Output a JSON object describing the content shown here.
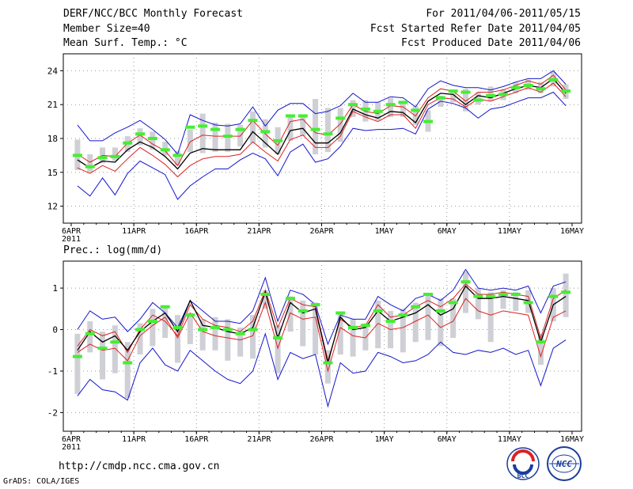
{
  "header": {
    "title": "DERF/NCC/BCC Monthly Forecast",
    "member_size": "Member Size=40",
    "variable_top": "Mean Surf. Temp.: °C",
    "period": "For 2011/04/06-2011/05/15",
    "refer_date": "Fcst Started Refer Date 2011/04/05",
    "produced_date": "Fcst Produced Date 2011/04/06"
  },
  "footer": {
    "url": "http://cmdp.ncc.cma.gov.cn",
    "credit": "GrADS: COLA/IGES",
    "logo_left": "BCC",
    "logo_right": "NCC"
  },
  "chart_data": [
    {
      "type": "line",
      "title": "Mean Surf. Temp.: °C",
      "ylim": [
        10.5,
        25.5
      ],
      "yticks": [
        12,
        15,
        18,
        21,
        24
      ],
      "x_tick_labels": [
        "6APR",
        "11APR",
        "16APR",
        "21APR",
        "26APR",
        "1MAY",
        "6MAY",
        "11MAY",
        "16MAY"
      ],
      "x_tick_days": [
        0,
        5,
        10,
        15,
        20,
        25,
        30,
        35,
        40
      ],
      "year_label": "2011",
      "colors": {
        "max_min": "#1515cc",
        "spread": "#dd2222",
        "mean": "#000000",
        "obs": "#44ee33",
        "box": "#cfcfd6",
        "grid": "#999999"
      },
      "series": [
        {
          "name": "ensemble max",
          "color": "#1515cc",
          "values": [
            19.2,
            17.8,
            17.8,
            18.5,
            19.0,
            19.6,
            18.8,
            17.9,
            16.6,
            20.1,
            19.6,
            19.2,
            19.1,
            19.3,
            20.8,
            19.1,
            20.5,
            21.1,
            21.1,
            20.2,
            20.4,
            20.9,
            22.0,
            21.2,
            21.2,
            21.7,
            21.6,
            20.8,
            22.4,
            23.1,
            22.7,
            22.5,
            22.5,
            22.3,
            22.6,
            23.0,
            23.3,
            23.3,
            24.0,
            22.8
          ]
        },
        {
          "name": "ensemble upper",
          "color": "#dd2222",
          "values": [
            16.6,
            15.9,
            16.5,
            16.4,
            17.6,
            18.3,
            17.5,
            16.9,
            15.6,
            17.7,
            18.3,
            18.2,
            18.2,
            18.2,
            19.6,
            18.4,
            17.4,
            19.5,
            19.7,
            18.5,
            18.3,
            19.3,
            21.0,
            20.4,
            20.2,
            20.9,
            20.8,
            20.0,
            21.6,
            22.4,
            22.2,
            21.3,
            22.1,
            22.1,
            22.3,
            22.7,
            23.1,
            22.8,
            23.6,
            22.3
          ]
        },
        {
          "name": "ensemble mean",
          "color": "#000000",
          "values": [
            16.1,
            15.4,
            16.0,
            15.9,
            17.0,
            17.7,
            17.2,
            16.4,
            15.3,
            16.7,
            17.1,
            17.0,
            17.0,
            17.0,
            18.6,
            17.6,
            16.6,
            18.7,
            18.9,
            17.6,
            17.6,
            18.5,
            20.6,
            20.1,
            19.8,
            20.4,
            20.3,
            19.4,
            21.3,
            22.0,
            21.9,
            21.0,
            21.8,
            21.6,
            22.0,
            22.4,
            22.7,
            22.5,
            23.3,
            22.0
          ]
        },
        {
          "name": "ensemble lower",
          "color": "#dd2222",
          "values": [
            15.4,
            14.9,
            15.6,
            15.1,
            16.2,
            17.2,
            16.5,
            15.7,
            14.6,
            15.6,
            16.2,
            16.4,
            16.4,
            16.6,
            17.7,
            16.8,
            16.0,
            17.9,
            18.3,
            17.2,
            17.2,
            18.2,
            20.4,
            19.9,
            19.5,
            20.1,
            20.1,
            18.9,
            21.0,
            21.6,
            21.5,
            20.8,
            21.5,
            21.3,
            21.7,
            22.1,
            22.5,
            22.1,
            22.9,
            21.7
          ]
        },
        {
          "name": "ensemble min",
          "color": "#1515cc",
          "values": [
            13.8,
            12.9,
            14.5,
            13.0,
            14.9,
            16.0,
            15.4,
            14.8,
            12.6,
            13.8,
            14.6,
            15.3,
            15.3,
            16.1,
            16.7,
            16.2,
            14.7,
            16.8,
            17.5,
            15.9,
            16.2,
            17.3,
            18.9,
            18.7,
            18.8,
            18.8,
            18.9,
            18.4,
            20.6,
            21.3,
            21.1,
            20.7,
            19.8,
            20.6,
            20.8,
            21.2,
            21.6,
            21.6,
            22.1,
            20.9
          ]
        },
        {
          "name": "observed",
          "color": "#44ee33",
          "marker": "dash",
          "values": [
            16.5,
            15.5,
            16.3,
            16.4,
            17.6,
            18.4,
            18.0,
            17.0,
            16.5,
            19.0,
            19.1,
            18.8,
            18.2,
            18.8,
            19.6,
            18.6,
            17.8,
            20.0,
            20.0,
            18.8,
            18.4,
            19.8,
            21.0,
            20.6,
            20.4,
            21.0,
            21.2,
            20.5,
            19.5,
            21.6,
            22.2,
            22.1,
            21.4,
            21.8,
            21.9,
            22.5,
            22.7,
            22.4,
            23.2,
            22.2
          ]
        },
        {
          "name": "box high",
          "color": "#cfcfd6",
          "values": [
            17.9,
            16.6,
            17.2,
            17.2,
            18.2,
            18.9,
            18.6,
            17.7,
            16.9,
            18.8,
            20.2,
            19.4,
            19.3,
            19.2,
            20.4,
            19.7,
            19.0,
            20.0,
            20.0,
            21.5,
            20.7,
            20.7,
            21.4,
            21.4,
            21.2,
            21.6,
            21.1,
            20.9,
            20.5,
            21.8,
            22.3,
            22.4,
            22.1,
            22.6,
            22.4,
            23.0,
            23.2,
            23.0,
            23.9,
            22.8
          ]
        },
        {
          "name": "box low",
          "color": "#cfcfd6",
          "values": [
            15.2,
            15.0,
            15.8,
            16.0,
            16.8,
            17.4,
            17.0,
            16.5,
            15.6,
            16.8,
            16.7,
            16.8,
            16.8,
            17.3,
            17.6,
            17.2,
            16.6,
            17.8,
            18.2,
            16.6,
            16.8,
            17.7,
            19.9,
            19.5,
            19.6,
            19.9,
            19.9,
            19.2,
            18.6,
            20.8,
            21.2,
            20.4,
            21.0,
            21.3,
            21.4,
            22.0,
            22.3,
            22.0,
            22.6,
            21.5
          ]
        }
      ]
    },
    {
      "type": "line",
      "title": "Prec.: log(mm/d)",
      "ylim": [
        -2.45,
        1.65
      ],
      "yticks": [
        -2,
        -1,
        0,
        1
      ],
      "x_tick_labels": [
        "6APR",
        "11APR",
        "16APR",
        "21APR",
        "26APR",
        "1MAY",
        "6MAY",
        "11MAY",
        "16MAY"
      ],
      "x_tick_days": [
        0,
        5,
        10,
        15,
        20,
        25,
        30,
        35,
        40
      ],
      "year_label": "2011",
      "series": [
        {
          "name": "ensemble max",
          "color": "#1515cc",
          "values": [
            0.0,
            0.45,
            0.25,
            0.3,
            -0.05,
            0.25,
            0.65,
            0.4,
            0.05,
            0.7,
            0.45,
            0.2,
            0.2,
            0.15,
            0.45,
            1.25,
            0.2,
            0.95,
            0.85,
            0.6,
            -0.35,
            0.35,
            0.25,
            0.25,
            0.8,
            0.6,
            0.45,
            0.75,
            0.85,
            0.7,
            0.95,
            1.45,
            1.0,
            0.95,
            1.0,
            0.95,
            1.05,
            0.4,
            1.05,
            1.15
          ]
        },
        {
          "name": "ensemble upper",
          "color": "#dd2222",
          "values": [
            -0.4,
            0.0,
            -0.15,
            -0.05,
            -0.55,
            0.0,
            0.35,
            0.2,
            -0.15,
            0.6,
            0.25,
            0.1,
            0.05,
            -0.05,
            0.2,
            0.95,
            0.05,
            0.75,
            0.6,
            0.55,
            -0.75,
            0.25,
            0.05,
            0.1,
            0.6,
            0.3,
            0.35,
            0.55,
            0.7,
            0.55,
            0.75,
            1.1,
            0.85,
            0.85,
            0.9,
            0.85,
            0.8,
            -0.2,
            0.75,
            0.95
          ]
        },
        {
          "name": "ensemble mean",
          "color": "#000000",
          "values": [
            -0.5,
            -0.05,
            -0.3,
            -0.15,
            -0.5,
            -0.05,
            0.2,
            0.4,
            -0.05,
            0.7,
            0.1,
            0.05,
            -0.05,
            -0.1,
            0.05,
            0.9,
            -0.2,
            0.65,
            0.4,
            0.5,
            -0.8,
            0.3,
            0.0,
            0.05,
            0.45,
            0.2,
            0.3,
            0.4,
            0.6,
            0.35,
            0.5,
            1.05,
            0.75,
            0.75,
            0.8,
            0.75,
            0.7,
            -0.3,
            0.6,
            0.8
          ]
        },
        {
          "name": "ensemble lower",
          "color": "#dd2222",
          "values": [
            -0.55,
            -0.35,
            -0.5,
            -0.45,
            -0.75,
            -0.15,
            0.1,
            0.3,
            -0.2,
            0.4,
            -0.05,
            -0.15,
            -0.2,
            -0.25,
            -0.15,
            0.65,
            -0.45,
            0.4,
            0.25,
            0.3,
            -1.0,
            0.05,
            -0.15,
            -0.2,
            0.15,
            0.0,
            0.05,
            0.2,
            0.35,
            0.05,
            0.2,
            0.75,
            0.45,
            0.35,
            0.45,
            0.4,
            0.35,
            -0.65,
            0.3,
            0.45
          ]
        },
        {
          "name": "ensemble min",
          "color": "#1515cc",
          "values": [
            -1.6,
            -1.2,
            -1.45,
            -1.5,
            -1.7,
            -0.8,
            -0.45,
            -0.85,
            -1.0,
            -0.5,
            -0.75,
            -1.0,
            -1.2,
            -1.3,
            -1.0,
            -0.1,
            -1.2,
            -0.55,
            -0.7,
            -0.6,
            -1.85,
            -0.8,
            -1.05,
            -1.0,
            -0.55,
            -0.65,
            -0.8,
            -0.75,
            -0.6,
            -0.3,
            -0.55,
            -0.6,
            -0.5,
            -0.55,
            -0.45,
            -0.6,
            -0.5,
            -1.35,
            -0.45,
            -0.25
          ]
        },
        {
          "name": "observed",
          "color": "#44ee33",
          "marker": "dash",
          "values": [
            -0.65,
            -0.1,
            -0.45,
            -0.3,
            -0.8,
            0.0,
            0.2,
            0.55,
            0.05,
            0.35,
            0.0,
            0.05,
            0.0,
            -0.1,
            0.0,
            0.85,
            -0.2,
            0.75,
            0.45,
            0.6,
            -0.8,
            0.4,
            0.05,
            0.1,
            0.45,
            0.2,
            0.35,
            0.55,
            0.85,
            0.45,
            0.65,
            1.15,
            0.8,
            0.8,
            0.85,
            0.85,
            0.65,
            -0.3,
            0.8,
            0.9
          ]
        },
        {
          "name": "box high",
          "color": "#cfcfd6",
          "values": [
            -0.1,
            0.2,
            -0.05,
            0.1,
            -0.3,
            0.15,
            0.5,
            0.55,
            0.35,
            0.4,
            0.25,
            0.3,
            0.25,
            0.05,
            0.35,
            0.95,
            0.1,
            0.8,
            0.7,
            0.65,
            -0.5,
            0.4,
            0.25,
            0.15,
            0.7,
            0.45,
            0.5,
            0.65,
            0.85,
            0.75,
            0.75,
            1.4,
            1.0,
            0.9,
            0.95,
            0.9,
            0.95,
            -0.1,
            1.0,
            1.35
          ]
        },
        {
          "name": "box low",
          "color": "#cfcfd6",
          "values": [
            -1.55,
            -0.55,
            -1.2,
            -1.05,
            -1.65,
            -0.6,
            -0.4,
            -0.2,
            -0.8,
            -0.35,
            -0.5,
            -0.5,
            -0.75,
            -0.65,
            -0.7,
            0.5,
            -1.05,
            -0.05,
            -0.4,
            -0.6,
            -1.3,
            -0.6,
            -0.65,
            -0.5,
            -0.45,
            -0.45,
            -0.55,
            -0.3,
            -0.25,
            -0.4,
            -0.2,
            0.4,
            0.25,
            -0.3,
            0.5,
            0.45,
            0.4,
            -0.85,
            0.2,
            0.3
          ]
        }
      ]
    }
  ]
}
